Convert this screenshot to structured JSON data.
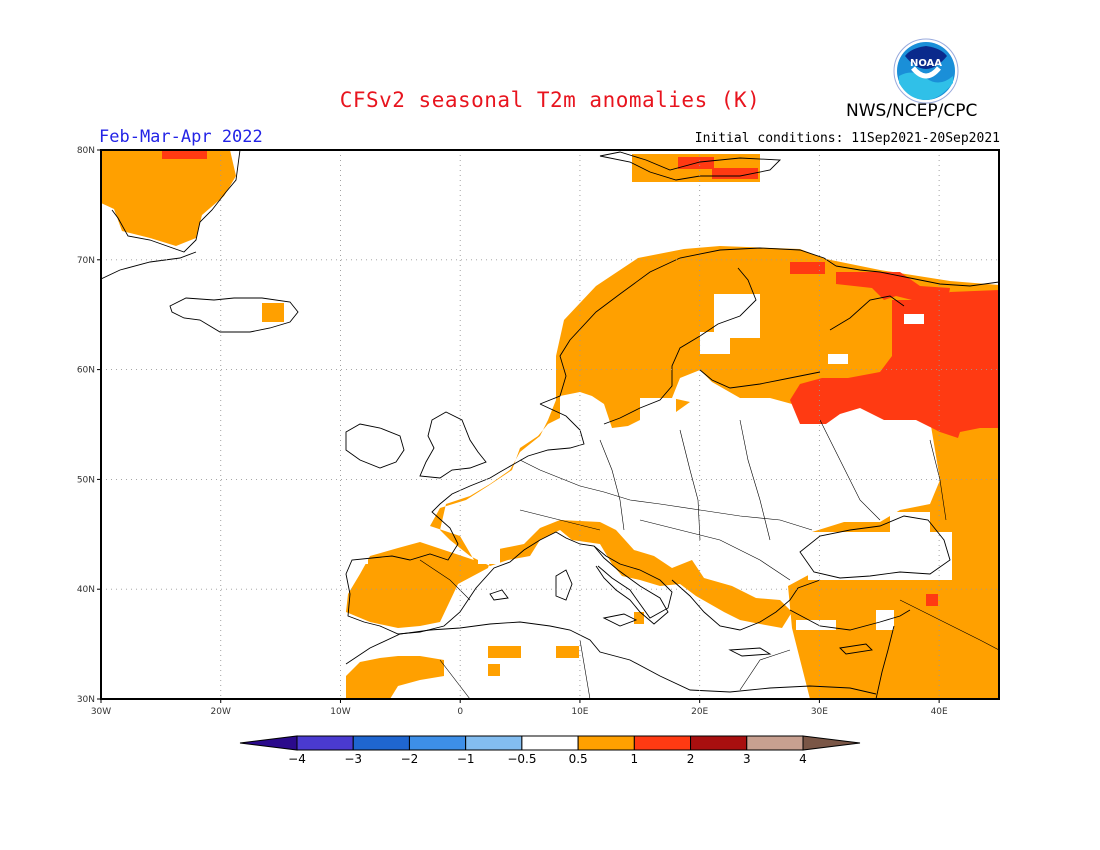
{
  "header": {
    "title": "CFSv2 seasonal T2m anomalies (K)",
    "period": "Feb-Mar-Apr 2022",
    "initial_conditions": "Initial conditions: 11Sep2021-20Sep2021",
    "agency": "NWS/NCEP/CPC",
    "logo_icon": "noaa-logo-icon"
  },
  "map": {
    "lat_labels": [
      "80N",
      "70N",
      "60N",
      "50N",
      "40N",
      "30N"
    ],
    "lon_labels": [
      "30W",
      "20W",
      "10W",
      "0",
      "10E",
      "20E",
      "30E",
      "40E"
    ]
  },
  "colorbar": {
    "labels": [
      "-4",
      "-3",
      "-2",
      "-1",
      "-0.5",
      "0.5",
      "1",
      "2",
      "3",
      "4"
    ],
    "colors": [
      "#2b0a8c",
      "#4a3ad0",
      "#1f66d0",
      "#3d8fe8",
      "#83bdf0",
      "#ffffff",
      "#ffa000",
      "#ff3a12",
      "#a80f0f",
      "#c8a090",
      "#7a5646"
    ]
  },
  "chart_data": {
    "type": "heatmap",
    "title": "CFSv2 seasonal T2m anomalies (K)",
    "subtitle": "Feb-Mar-Apr 2022",
    "xlabel": "",
    "ylabel": "",
    "lon_range": [
      -30,
      45
    ],
    "lat_range": [
      30,
      80
    ],
    "levels": [
      -4,
      -3,
      -2,
      -1,
      -0.5,
      0.5,
      1,
      2,
      3,
      4
    ],
    "regions": [
      {
        "area": "Iberian Peninsula",
        "anomaly_K": "0.5-1"
      },
      {
        "area": "France",
        "anomaly_K": "0.5-1"
      },
      {
        "area": "Central Europe",
        "anomaly_K": "0.5-1"
      },
      {
        "area": "Scandinavia",
        "anomaly_K": "0.5-1"
      },
      {
        "area": "Eastern Europe",
        "anomaly_K": "0.5-1"
      },
      {
        "area": "Western Russia",
        "anomaly_K": "1-2"
      },
      {
        "area": "Northern Russia / Kola",
        "anomaly_K": "1-2"
      },
      {
        "area": "Greenland coast",
        "anomaly_K": "0.5-1"
      },
      {
        "area": "British Isles",
        "anomaly_K": "-0.5-0.5"
      },
      {
        "area": "Mediterranean Sea",
        "anomaly_K": "-0.5-0.5"
      },
      {
        "area": "North Africa",
        "anomaly_K": "-0.5-0.5"
      },
      {
        "area": "Black Sea",
        "anomaly_K": "-0.5-0.5"
      },
      {
        "area": "Middle East",
        "anomaly_K": "0.5-1"
      }
    ]
  }
}
